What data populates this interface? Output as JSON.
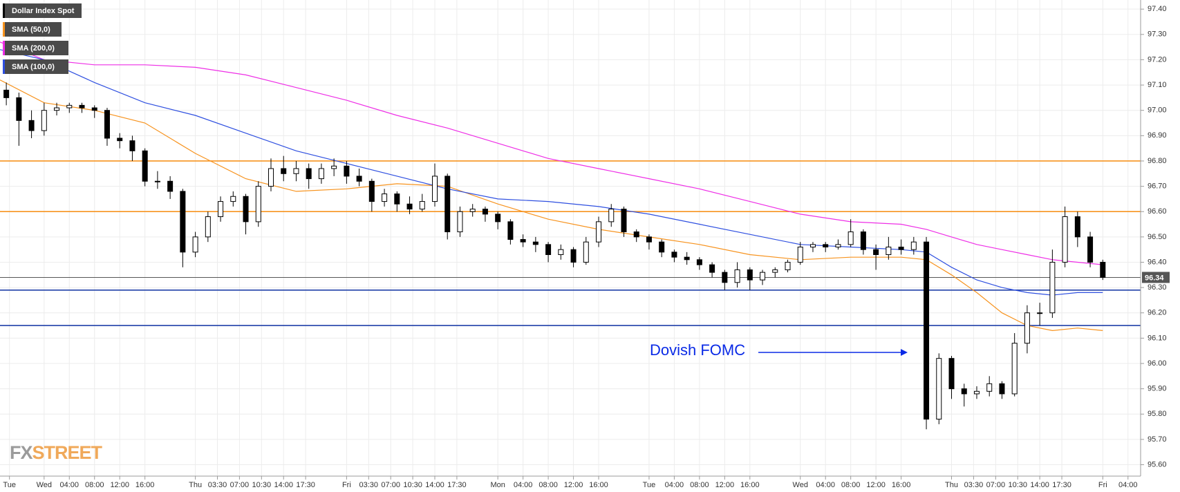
{
  "chart_data": {
    "type": "candlestick",
    "xlim": [
      -7,
      174
    ],
    "ylim": [
      95.555,
      97.436
    ],
    "grid": true,
    "yticks": [
      {
        "value": 95.6,
        "label": "95.60"
      },
      {
        "value": 95.7,
        "label": "95.70"
      },
      {
        "value": 95.8,
        "label": "95.80"
      },
      {
        "value": 95.9,
        "label": "95.90"
      },
      {
        "value": 96.0,
        "label": "96.00"
      },
      {
        "value": 96.1,
        "label": "96.10"
      },
      {
        "value": 96.2,
        "label": "96.20"
      },
      {
        "value": 96.3,
        "label": "96.30"
      },
      {
        "value": 96.4,
        "label": "96.40"
      },
      {
        "value": 96.5,
        "label": "96.50"
      },
      {
        "value": 96.6,
        "label": "96.60"
      },
      {
        "value": 96.7,
        "label": "96.70"
      },
      {
        "value": 96.8,
        "label": "96.80"
      },
      {
        "value": 96.9,
        "label": "96.90"
      },
      {
        "value": 97.0,
        "label": "97.00"
      },
      {
        "value": 97.1,
        "label": "97.10"
      },
      {
        "value": 97.2,
        "label": "97.20"
      },
      {
        "value": 97.3,
        "label": "97.30"
      },
      {
        "value": 97.4,
        "label": "97.40"
      }
    ],
    "xticks": [
      {
        "value": -5.5,
        "label": "Tue"
      },
      {
        "value": 0,
        "label": "Wed"
      },
      {
        "value": 4,
        "label": "04:00"
      },
      {
        "value": 8,
        "label": "08:00"
      },
      {
        "value": 12,
        "label": "12:00"
      },
      {
        "value": 16,
        "label": "16:00"
      },
      {
        "value": 24,
        "label": "Thu"
      },
      {
        "value": 27.5,
        "label": "03:30"
      },
      {
        "value": 31,
        "label": "07:00"
      },
      {
        "value": 34.5,
        "label": "10:30"
      },
      {
        "value": 38,
        "label": "14:00"
      },
      {
        "value": 41.5,
        "label": "17:30"
      },
      {
        "value": 48,
        "label": "Fri"
      },
      {
        "value": 51.5,
        "label": "03:30"
      },
      {
        "value": 55,
        "label": "07:00"
      },
      {
        "value": 58.5,
        "label": "10:30"
      },
      {
        "value": 62,
        "label": "14:00"
      },
      {
        "value": 65.5,
        "label": "17:30"
      },
      {
        "value": 72,
        "label": "Mon"
      },
      {
        "value": 76,
        "label": "04:00"
      },
      {
        "value": 80,
        "label": "08:00"
      },
      {
        "value": 84,
        "label": "12:00"
      },
      {
        "value": 88,
        "label": "16:00"
      },
      {
        "value": 96,
        "label": "Tue"
      },
      {
        "value": 100,
        "label": "04:00"
      },
      {
        "value": 104,
        "label": "08:00"
      },
      {
        "value": 108,
        "label": "12:00"
      },
      {
        "value": 112,
        "label": "16:00"
      },
      {
        "value": 120,
        "label": "Wed"
      },
      {
        "value": 124,
        "label": "04:00"
      },
      {
        "value": 128,
        "label": "08:00"
      },
      {
        "value": 132,
        "label": "12:00"
      },
      {
        "value": 136,
        "label": "16:00"
      },
      {
        "value": 144,
        "label": "Thu"
      },
      {
        "value": 147.5,
        "label": "03:30"
      },
      {
        "value": 151,
        "label": "07:00"
      },
      {
        "value": 154.5,
        "label": "10:30"
      },
      {
        "value": 158,
        "label": "14:00"
      },
      {
        "value": 161.5,
        "label": "17:30"
      },
      {
        "value": 168,
        "label": "Fri"
      },
      {
        "value": 172,
        "label": "04:00"
      }
    ],
    "series": [
      {
        "name": "Dollar Index Spot",
        "color": "#000000",
        "up_color": "#ffffff",
        "down_color": "#000000",
        "x": [
          -6,
          -4,
          -2,
          0,
          2,
          4,
          6,
          8,
          10,
          12,
          14,
          16,
          18,
          20,
          22,
          24,
          26,
          28,
          30,
          32,
          34,
          36,
          38,
          40,
          42,
          44,
          46,
          48,
          50,
          52,
          54,
          56,
          58,
          60,
          62,
          64,
          66,
          68,
          70,
          72,
          74,
          76,
          78,
          80,
          82,
          84,
          86,
          88,
          90,
          92,
          94,
          96,
          98,
          100,
          102,
          104,
          106,
          108,
          110,
          112,
          114,
          116,
          118,
          120,
          122,
          124,
          126,
          128,
          130,
          132,
          134,
          136,
          138,
          140,
          142,
          144,
          146,
          148,
          150,
          152,
          154,
          156,
          158,
          160,
          162,
          164,
          166,
          168
        ],
        "ohlc": [
          [
            97.08,
            97.11,
            97.02,
            97.05
          ],
          [
            97.05,
            97.07,
            96.86,
            96.96
          ],
          [
            96.96,
            97.0,
            96.89,
            96.92
          ],
          [
            96.92,
            97.03,
            96.9,
            97.0
          ],
          [
            97.0,
            97.03,
            96.98,
            97.01
          ],
          [
            97.01,
            97.03,
            96.99,
            97.02
          ],
          [
            97.02,
            97.03,
            96.99,
            97.01
          ],
          [
            97.01,
            97.02,
            96.97,
            97.0
          ],
          [
            97.0,
            97.01,
            96.86,
            96.89
          ],
          [
            96.89,
            96.91,
            96.85,
            96.88
          ],
          [
            96.88,
            96.9,
            96.8,
            96.84
          ],
          [
            96.84,
            96.85,
            96.7,
            96.72
          ],
          [
            96.72,
            96.76,
            96.69,
            96.72
          ],
          [
            96.72,
            96.74,
            96.65,
            96.68
          ],
          [
            96.68,
            96.69,
            96.38,
            96.44
          ],
          [
            96.44,
            96.52,
            96.42,
            96.5
          ],
          [
            96.5,
            96.6,
            96.48,
            96.58
          ],
          [
            96.58,
            96.66,
            96.56,
            96.64
          ],
          [
            96.64,
            96.68,
            96.62,
            96.66
          ],
          [
            96.66,
            96.67,
            96.51,
            96.56
          ],
          [
            96.56,
            96.72,
            96.54,
            96.7
          ],
          [
            96.7,
            96.81,
            96.68,
            96.77
          ],
          [
            96.77,
            96.82,
            96.72,
            96.75
          ],
          [
            96.75,
            96.8,
            96.72,
            96.77
          ],
          [
            96.77,
            96.79,
            96.69,
            96.73
          ],
          [
            96.73,
            96.79,
            96.71,
            96.77
          ],
          [
            96.77,
            96.81,
            96.74,
            96.78
          ],
          [
            96.78,
            96.8,
            96.71,
            96.74
          ],
          [
            96.74,
            96.77,
            96.7,
            96.72
          ],
          [
            96.72,
            96.73,
            96.6,
            96.64
          ],
          [
            96.64,
            96.69,
            96.62,
            96.67
          ],
          [
            96.67,
            96.68,
            96.6,
            96.63
          ],
          [
            96.63,
            96.66,
            96.59,
            96.61
          ],
          [
            96.61,
            96.67,
            96.6,
            96.64
          ],
          [
            96.64,
            96.79,
            96.62,
            96.74
          ],
          [
            96.74,
            96.75,
            96.49,
            96.52
          ],
          [
            96.52,
            96.62,
            96.5,
            96.6
          ],
          [
            96.6,
            96.63,
            96.58,
            96.61
          ],
          [
            96.61,
            96.62,
            96.56,
            96.59
          ],
          [
            96.59,
            96.6,
            96.53,
            96.56
          ],
          [
            96.56,
            96.57,
            96.47,
            96.49
          ],
          [
            96.49,
            96.51,
            96.46,
            96.48
          ],
          [
            96.48,
            96.5,
            96.44,
            96.47
          ],
          [
            96.47,
            96.48,
            96.4,
            96.43
          ],
          [
            96.43,
            96.47,
            96.41,
            96.45
          ],
          [
            96.45,
            96.46,
            96.38,
            96.4
          ],
          [
            96.4,
            96.5,
            96.39,
            96.48
          ],
          [
            96.48,
            96.58,
            96.46,
            96.56
          ],
          [
            96.56,
            96.63,
            96.54,
            96.61
          ],
          [
            96.61,
            96.62,
            96.5,
            96.52
          ],
          [
            96.52,
            96.53,
            96.48,
            96.5
          ],
          [
            96.5,
            96.51,
            96.45,
            96.48
          ],
          [
            96.48,
            96.49,
            96.42,
            96.44
          ],
          [
            96.44,
            96.45,
            96.4,
            96.42
          ],
          [
            96.42,
            96.44,
            96.39,
            96.41
          ],
          [
            96.41,
            96.42,
            96.37,
            96.39
          ],
          [
            96.39,
            96.4,
            96.34,
            96.36
          ],
          [
            96.36,
            96.37,
            96.29,
            96.32
          ],
          [
            96.32,
            96.4,
            96.3,
            96.37
          ],
          [
            96.37,
            96.38,
            96.29,
            96.33
          ],
          [
            96.33,
            96.37,
            96.31,
            96.36
          ],
          [
            96.36,
            96.38,
            96.34,
            96.37
          ],
          [
            96.37,
            96.41,
            96.36,
            96.4
          ],
          [
            96.4,
            96.48,
            96.39,
            96.46
          ],
          [
            96.46,
            96.48,
            96.44,
            96.47
          ],
          [
            96.47,
            96.48,
            96.44,
            96.46
          ],
          [
            96.46,
            96.49,
            96.45,
            96.47
          ],
          [
            96.47,
            96.57,
            96.46,
            96.52
          ],
          [
            96.52,
            96.53,
            96.43,
            96.45
          ],
          [
            96.45,
            96.47,
            96.37,
            96.43
          ],
          [
            96.43,
            96.5,
            96.41,
            96.46
          ],
          [
            96.46,
            96.49,
            96.43,
            96.45
          ],
          [
            96.45,
            96.5,
            96.43,
            96.48
          ],
          [
            96.48,
            96.5,
            95.74,
            95.78
          ],
          [
            95.78,
            96.04,
            95.76,
            96.02
          ],
          [
            96.02,
            96.03,
            95.86,
            95.9
          ],
          [
            95.9,
            95.92,
            95.83,
            95.88
          ],
          [
            95.88,
            95.91,
            95.86,
            95.89
          ],
          [
            95.89,
            95.95,
            95.87,
            95.92
          ],
          [
            95.92,
            95.93,
            95.86,
            95.88
          ],
          [
            95.88,
            96.12,
            95.87,
            96.08
          ],
          [
            96.08,
            96.23,
            96.04,
            96.2
          ],
          [
            96.2,
            96.24,
            96.15,
            96.2
          ],
          [
            96.2,
            96.45,
            96.18,
            96.4
          ],
          [
            96.4,
            96.62,
            96.38,
            96.58
          ],
          [
            96.58,
            96.6,
            96.46,
            96.5
          ],
          [
            96.5,
            96.52,
            96.38,
            96.4
          ],
          [
            96.4,
            96.41,
            96.33,
            96.34
          ]
        ]
      },
      {
        "name": "SMA (50,0)",
        "color": "#f7931e",
        "values": [
          97.12,
          97.03,
          97.0,
          96.95,
          96.83,
          96.73,
          96.68,
          96.69,
          96.71,
          96.7,
          96.63,
          96.57,
          96.53,
          96.5,
          96.47,
          96.43,
          96.41,
          96.42,
          96.42,
          96.41,
          96.35,
          96.28,
          96.2,
          96.15,
          96.13,
          96.14,
          96.13
        ]
      },
      {
        "name": "SMA (200,0)",
        "color": "#ee2ee6",
        "values": [
          97.27,
          97.2,
          97.18,
          97.18,
          97.17,
          97.14,
          97.09,
          97.04,
          96.98,
          96.93,
          96.87,
          96.81,
          96.77,
          96.73,
          96.69,
          96.64,
          96.59,
          96.56,
          96.55,
          96.53,
          96.5,
          96.47,
          96.45,
          96.43,
          96.41,
          96.4,
          96.39
        ]
      },
      {
        "name": "SMA (100,0)",
        "color": "#2e4fe0",
        "values": [
          97.24,
          97.2,
          97.11,
          97.03,
          96.98,
          96.91,
          96.84,
          96.79,
          96.74,
          96.69,
          96.65,
          96.64,
          96.62,
          96.59,
          96.55,
          96.51,
          96.47,
          96.46,
          96.45,
          96.44,
          96.38,
          96.33,
          96.3,
          96.28,
          96.27,
          96.28,
          96.28
        ]
      }
    ],
    "sma_x": [
      -7,
      0,
      8,
      16,
      24,
      32,
      40,
      48,
      56,
      64,
      72,
      80,
      88,
      96,
      104,
      112,
      120,
      128,
      136,
      140,
      144,
      148,
      152,
      156,
      160,
      164,
      168
    ],
    "levels": [
      {
        "value": 96.8,
        "color": "#f7931e"
      },
      {
        "value": 96.6,
        "color": "#f7931e"
      },
      {
        "value": 96.29,
        "color": "#1f3fa8"
      },
      {
        "value": 96.15,
        "color": "#1f3fa8"
      }
    ],
    "last_price": 96.34,
    "last_price_color": "#555555",
    "annotation": {
      "text": "Dovish FOMC",
      "color": "#0a2ae6"
    },
    "logo": [
      "FX",
      "STREET"
    ]
  }
}
